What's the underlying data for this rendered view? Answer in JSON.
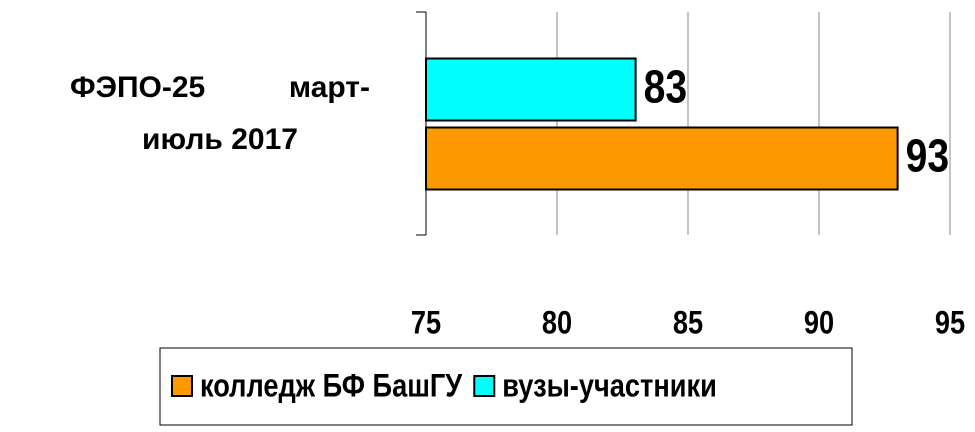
{
  "chart_data": {
    "type": "barh",
    "categories": [
      "ФЭПО-25 март-июль 2017"
    ],
    "series": [
      {
        "name": "колледж БФ БашГУ",
        "color": "#ff9900",
        "values": [
          93
        ]
      },
      {
        "name": "вузы-участники",
        "color": "#00ffff",
        "values": [
          83
        ]
      }
    ],
    "xlim": [
      75,
      95
    ],
    "xticks": [
      75,
      80,
      85,
      90,
      95
    ],
    "grid": true,
    "legend": "bottom"
  }
}
